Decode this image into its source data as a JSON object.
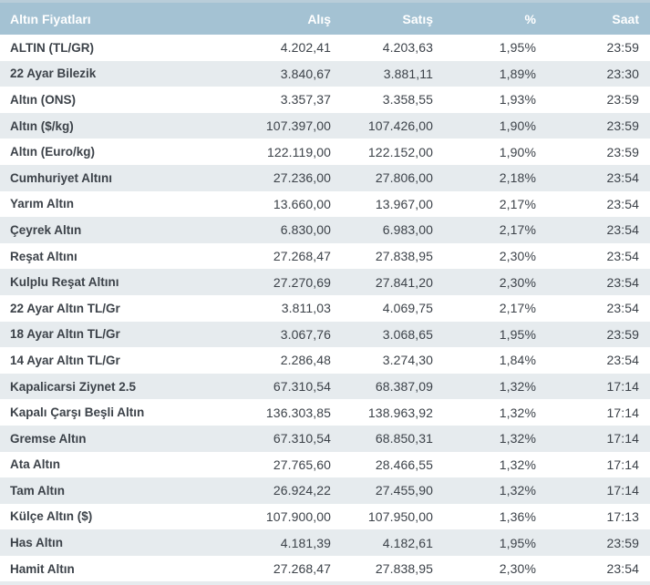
{
  "colors": {
    "header_bg": "#a4c2d3",
    "header_top_edge": "#b9cdd9",
    "header_text": "#ffffff",
    "row_bg": "#ffffff",
    "row_alt_bg": "#e6ebee",
    "text": "#3c4249"
  },
  "table": {
    "title": "Altın Fiyatları",
    "columns": {
      "name": "Altın Fiyatları",
      "buy": "Alış",
      "sell": "Satış",
      "pct": "%",
      "time": "Saat"
    },
    "rows": [
      {
        "name": "ALTIN (TL/GR)",
        "buy": "4.202,41",
        "sell": "4.203,63",
        "pct": "1,95%",
        "time": "23:59"
      },
      {
        "name": "22 Ayar Bilezik",
        "buy": "3.840,67",
        "sell": "3.881,11",
        "pct": "1,89%",
        "time": "23:30"
      },
      {
        "name": "Altın (ONS)",
        "buy": "3.357,37",
        "sell": "3.358,55",
        "pct": "1,93%",
        "time": "23:59"
      },
      {
        "name": "Altın ($/kg)",
        "buy": "107.397,00",
        "sell": "107.426,00",
        "pct": "1,90%",
        "time": "23:59"
      },
      {
        "name": "Altın (Euro/kg)",
        "buy": "122.119,00",
        "sell": "122.152,00",
        "pct": "1,90%",
        "time": "23:59"
      },
      {
        "name": "Cumhuriyet Altını",
        "buy": "27.236,00",
        "sell": "27.806,00",
        "pct": "2,18%",
        "time": "23:54"
      },
      {
        "name": "Yarım Altın",
        "buy": "13.660,00",
        "sell": "13.967,00",
        "pct": "2,17%",
        "time": "23:54"
      },
      {
        "name": "Çeyrek Altın",
        "buy": "6.830,00",
        "sell": "6.983,00",
        "pct": "2,17%",
        "time": "23:54"
      },
      {
        "name": "Reşat Altını",
        "buy": "27.268,47",
        "sell": "27.838,95",
        "pct": "2,30%",
        "time": "23:54"
      },
      {
        "name": "Kulplu Reşat Altını",
        "buy": "27.270,69",
        "sell": "27.841,20",
        "pct": "2,30%",
        "time": "23:54"
      },
      {
        "name": "22 Ayar Altın TL/Gr",
        "buy": "3.811,03",
        "sell": "4.069,75",
        "pct": "2,17%",
        "time": "23:54"
      },
      {
        "name": "18 Ayar Altın TL/Gr",
        "buy": "3.067,76",
        "sell": "3.068,65",
        "pct": "1,95%",
        "time": "23:59"
      },
      {
        "name": "14 Ayar Altın TL/Gr",
        "buy": "2.286,48",
        "sell": "3.274,30",
        "pct": "1,84%",
        "time": "23:54"
      },
      {
        "name": "Kapalicarsi Ziynet 2.5",
        "buy": "67.310,54",
        "sell": "68.387,09",
        "pct": "1,32%",
        "time": "17:14"
      },
      {
        "name": "Kapalı Çarşı Beşli Altın",
        "buy": "136.303,85",
        "sell": "138.963,92",
        "pct": "1,32%",
        "time": "17:14"
      },
      {
        "name": "Gremse Altın",
        "buy": "67.310,54",
        "sell": "68.850,31",
        "pct": "1,32%",
        "time": "17:14"
      },
      {
        "name": "Ata Altın",
        "buy": "27.765,60",
        "sell": "28.466,55",
        "pct": "1,32%",
        "time": "17:14"
      },
      {
        "name": "Tam Altın",
        "buy": "26.924,22",
        "sell": "27.455,90",
        "pct": "1,32%",
        "time": "17:14"
      },
      {
        "name": "Külçe Altın ($)",
        "buy": "107.900,00",
        "sell": "107.950,00",
        "pct": "1,36%",
        "time": "17:13"
      },
      {
        "name": "Has Altın",
        "buy": "4.181,39",
        "sell": "4.182,61",
        "pct": "1,95%",
        "time": "23:59"
      },
      {
        "name": "Hamit Altın",
        "buy": "27.268,47",
        "sell": "27.838,95",
        "pct": "2,30%",
        "time": "23:54"
      }
    ]
  }
}
